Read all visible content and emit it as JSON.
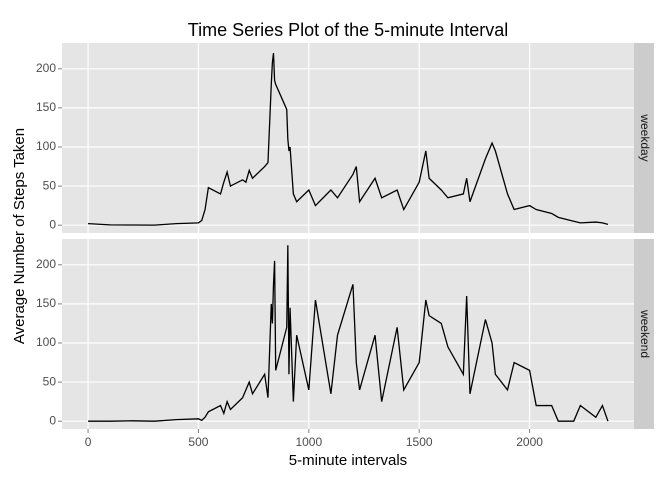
{
  "chart_data": {
    "type": "line",
    "facet": true,
    "title": "Time Series Plot of the 5-minute Interval",
    "xlabel": "5-minute intervals",
    "ylabel": "Average Number of Steps Taken",
    "xlim": [
      -118,
      2473
    ],
    "xticks": [
      0,
      500,
      1000,
      1500,
      2000
    ],
    "ylim": [
      -10,
      233
    ],
    "yticks": [
      0,
      50,
      100,
      150,
      200
    ],
    "grid": true,
    "x": [
      0,
      100,
      200,
      300,
      400,
      500,
      515,
      530,
      545,
      600,
      615,
      630,
      645,
      700,
      715,
      730,
      745,
      800,
      815,
      830,
      835,
      840,
      845,
      850,
      900,
      905,
      910,
      915,
      930,
      945,
      1000,
      1030,
      1100,
      1130,
      1200,
      1215,
      1230,
      1300,
      1330,
      1400,
      1430,
      1500,
      1530,
      1545,
      1600,
      1630,
      1700,
      1715,
      1730,
      1800,
      1830,
      1845,
      1900,
      1930,
      2000,
      2030,
      2100,
      2130,
      2200,
      2230,
      2300,
      2330,
      2355
    ],
    "series": [
      {
        "name": "weekday",
        "color": "#000000",
        "values": [
          2,
          0.4,
          0.2,
          0.1,
          2,
          3,
          6,
          20,
          48,
          40,
          55,
          68,
          50,
          58,
          55,
          70,
          60,
          75,
          80,
          180,
          208,
          220,
          185,
          180,
          148,
          110,
          95,
          100,
          40,
          30,
          45,
          25,
          45,
          35,
          65,
          75,
          30,
          60,
          35,
          45,
          20,
          55,
          95,
          60,
          45,
          35,
          40,
          60,
          30,
          85,
          105,
          95,
          40,
          20,
          25,
          20,
          15,
          10,
          5,
          3,
          4,
          3,
          1
        ]
      },
      {
        "name": "weekend",
        "color": "#000000",
        "values": [
          0,
          0,
          0.5,
          0,
          2,
          3,
          1,
          5,
          12,
          20,
          10,
          25,
          15,
          30,
          40,
          50,
          35,
          60,
          30,
          150,
          125,
          175,
          205,
          65,
          120,
          225,
          60,
          145,
          25,
          110,
          40,
          155,
          35,
          110,
          175,
          75,
          40,
          110,
          25,
          120,
          40,
          75,
          155,
          135,
          125,
          95,
          60,
          160,
          35,
          130,
          100,
          60,
          40,
          75,
          65,
          20,
          20,
          0,
          0,
          20,
          5,
          20,
          0
        ]
      }
    ]
  }
}
